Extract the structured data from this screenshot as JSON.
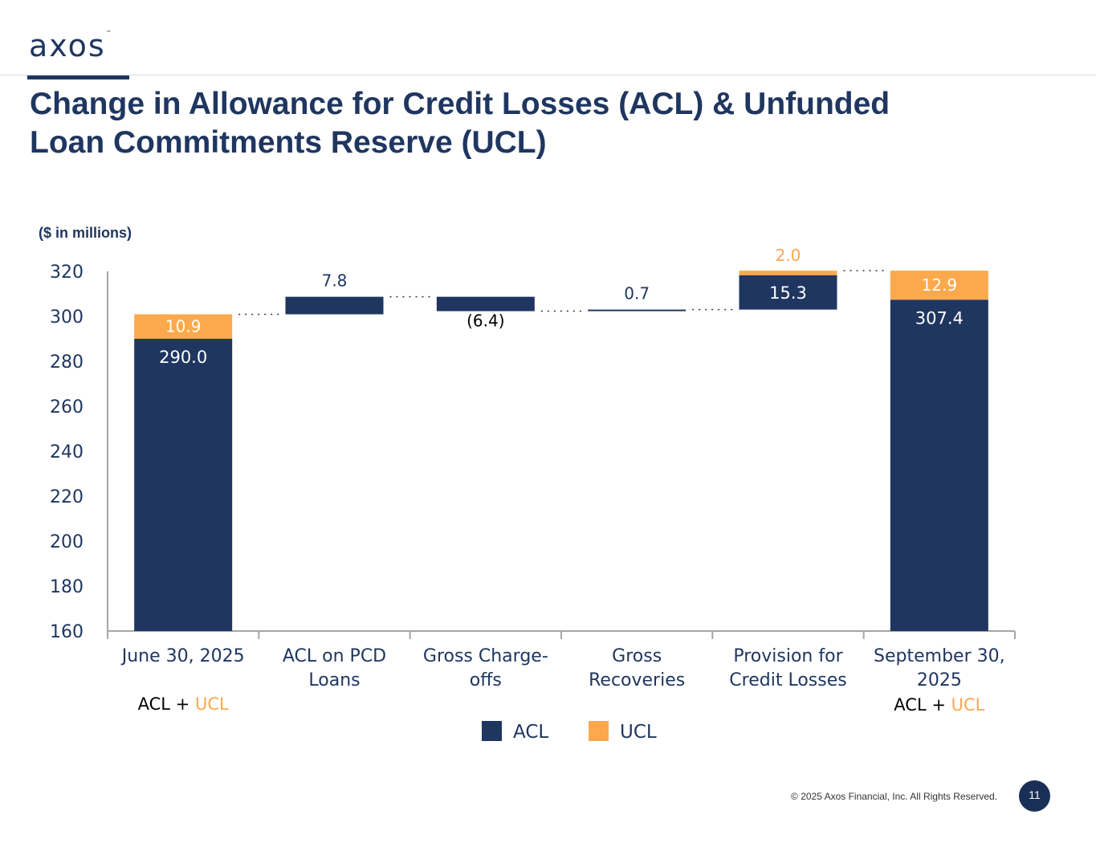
{
  "header": {
    "logo_text": "axos",
    "logo_tm": "™",
    "title": "Change in Allowance for Credit Losses (ACL) & Unfunded Loan Commitments Reserve (UCL)"
  },
  "colors": {
    "acl": "#1f3660",
    "ucl": "#fba94c",
    "axis": "#a6a6a6",
    "text": "#1f3660"
  },
  "chart_data": {
    "type": "bar",
    "subtype": "waterfall",
    "units_label": "($ in millions)",
    "ylim": [
      160,
      320
    ],
    "yticks": [
      "160",
      "180",
      "200",
      "220",
      "240",
      "260",
      "280",
      "300",
      "320"
    ],
    "grid": false,
    "legend_position": "bottom",
    "legend": [
      {
        "label": "ACL",
        "color": "#1f3660"
      },
      {
        "label": "UCL",
        "color": "#fba94c"
      }
    ],
    "categories": [
      [
        "June 30, 2025"
      ],
      [
        "ACL on PCD",
        "Loans"
      ],
      [
        "Gross Charge-",
        "offs"
      ],
      [
        "Gross",
        "Recoveries"
      ],
      [
        "Provision for",
        "Credit Losses"
      ],
      [
        "September 30,",
        "2025"
      ]
    ],
    "bars": [
      {
        "kind": "total",
        "acl": 290.0,
        "ucl": 10.9,
        "acl_label": "290.0",
        "ucl_label": "10.9"
      },
      {
        "kind": "delta",
        "start": 300.9,
        "acl": 7.8,
        "acl_label": "7.8"
      },
      {
        "kind": "delta",
        "start": 308.7,
        "acl": -6.4,
        "acl_label": "(6.4)"
      },
      {
        "kind": "delta",
        "start": 302.3,
        "acl": 0.7,
        "acl_label": "0.7"
      },
      {
        "kind": "delta",
        "start": 303.0,
        "acl": 15.3,
        "ucl": 2.0,
        "acl_label": "15.3",
        "ucl_label": "2.0"
      },
      {
        "kind": "total",
        "acl": 307.4,
        "ucl": 12.9,
        "acl_label": "307.4",
        "ucl_label": "12.9"
      }
    ],
    "annotations": [
      {
        "acl": "ACL",
        "plus": " + ",
        "ucl": "UCL"
      },
      {
        "acl": "ACL",
        "plus": " + ",
        "ucl": "UCL"
      }
    ]
  },
  "footer": {
    "copyright": "© 2025 Axos Financial, Inc. All Rights Reserved.",
    "page_number": "11"
  }
}
